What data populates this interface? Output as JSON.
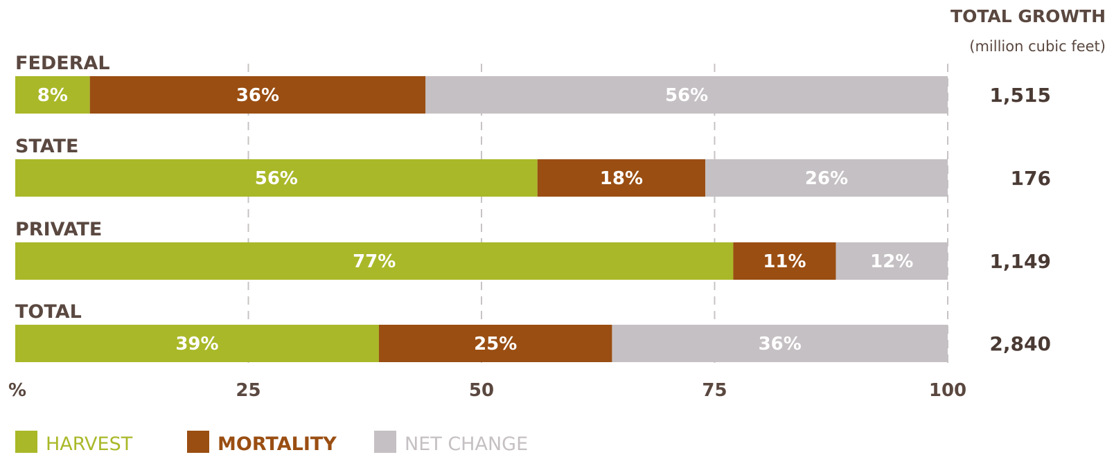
{
  "chart_data": {
    "type": "bar",
    "orientation": "horizontal",
    "stacked": true,
    "categories": [
      "FEDERAL",
      "STATE",
      "PRIVATE",
      "TOTAL"
    ],
    "series": [
      {
        "name": "HARVEST",
        "values": [
          8,
          56,
          77,
          39
        ],
        "labels": [
          "8%",
          "56%",
          "77%",
          "39%"
        ],
        "color": "#a9b828"
      },
      {
        "name": "MORTALITY",
        "values": [
          36,
          18,
          11,
          25
        ],
        "labels": [
          "36%",
          "18%",
          "11%",
          "25%"
        ],
        "color": "#9a4e12"
      },
      {
        "name": "NET CHANGE",
        "values": [
          56,
          26,
          12,
          36
        ],
        "labels": [
          "56%",
          "26%",
          "12%",
          "36%"
        ],
        "color": "#c5c0c3"
      }
    ],
    "xlim": [
      0,
      100
    ],
    "xticks": [
      "%",
      "25",
      "50",
      "75",
      "100"
    ],
    "xtick_values": [
      0,
      25,
      50,
      75,
      100
    ],
    "grid": "vertical dashed",
    "legend_position": "bottom",
    "totals": {
      "title": "TOTAL GROWTH",
      "unit": "(million cubic feet)",
      "values": [
        "1,515",
        "176",
        "1,149",
        "2,840"
      ]
    },
    "legend_text_colors": [
      "#a9b828",
      "#9a4e12",
      "#c5c0c3"
    ],
    "label_color": "#5a4840"
  }
}
